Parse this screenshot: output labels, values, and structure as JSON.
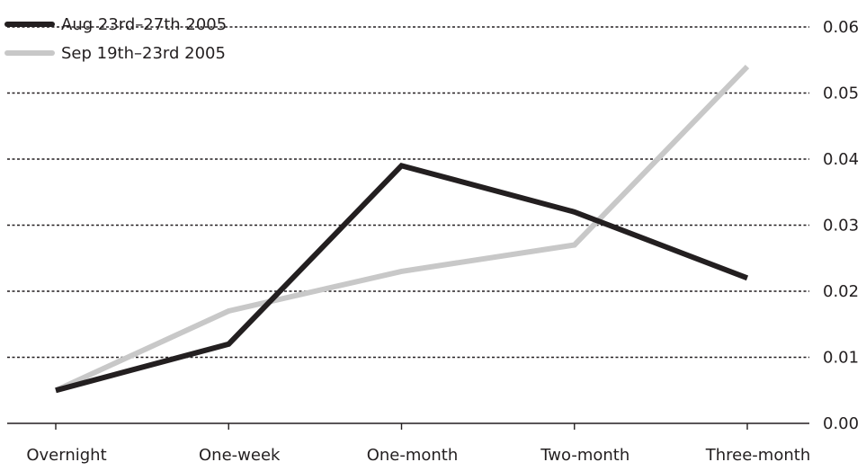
{
  "chart_data": {
    "type": "line",
    "title": "",
    "xlabel": "",
    "ylabel": "",
    "categories": [
      "Overnight",
      "One-week",
      "One-month",
      "Two-month",
      "Three-month"
    ],
    "series": [
      {
        "name": "Aug 23rd–27th 2005",
        "color": "#231f20",
        "values": [
          0.005,
          0.012,
          0.039,
          0.032,
          0.022
        ]
      },
      {
        "name": "Sep 19th–23rd 2005",
        "color": "#c8c8c8",
        "values": [
          0.005,
          0.017,
          0.023,
          0.027,
          0.054
        ]
      }
    ],
    "ylim": [
      0,
      0.06
    ],
    "yticks": [
      "0.00",
      "0.01",
      "0.02",
      "0.03",
      "0.04",
      "0.05",
      "0.06"
    ],
    "y_axis_side": "right",
    "grid": "horizontal dashed",
    "legend_position": "top-left"
  }
}
